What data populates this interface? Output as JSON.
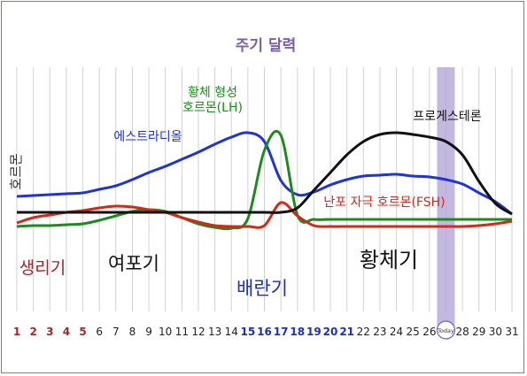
{
  "chart_data": {
    "type": "line",
    "title": "주기 달력",
    "ylabel": "호르몬",
    "x": [
      1,
      2,
      3,
      4,
      5,
      6,
      7,
      8,
      9,
      10,
      11,
      12,
      13,
      14,
      15,
      16,
      17,
      18,
      19,
      20,
      21,
      22,
      23,
      24,
      25,
      26,
      27,
      28,
      29,
      30,
      31
    ],
    "day_colors": {
      "menstrual": "#a8232a",
      "fertile": "#1a2fbf",
      "normal": "#222222"
    },
    "menstrual_days": [
      1,
      2,
      3,
      4,
      5
    ],
    "fertile_days": [
      15,
      16,
      17,
      18,
      19,
      20,
      21
    ],
    "today": {
      "day": 27,
      "label": "Today",
      "band_color": "#b9addb"
    },
    "phases": [
      {
        "label": "생리기",
        "color": "#a8232a"
      },
      {
        "label": "여포기",
        "color": "#111111"
      },
      {
        "label": "배란기",
        "color": "#1a2fbf"
      },
      {
        "label": "황체기",
        "color": "#111111"
      }
    ],
    "series": [
      {
        "name": "에스트라디올",
        "color": "#1f33d6",
        "values": [
          0.28,
          0.29,
          0.3,
          0.31,
          0.32,
          0.36,
          0.4,
          0.47,
          0.55,
          0.62,
          0.7,
          0.78,
          0.87,
          0.95,
          1.0,
          0.9,
          0.46,
          0.3,
          0.33,
          0.41,
          0.47,
          0.51,
          0.52,
          0.53,
          0.51,
          0.5,
          0.47,
          0.42,
          0.32,
          0.22,
          0.08
        ]
      },
      {
        "name": "황체 형성\n호르몬(LH)",
        "color": "#1d8a1d",
        "values": [
          -0.06,
          -0.05,
          -0.05,
          -0.04,
          -0.03,
          0.01,
          0.06,
          0.11,
          0.13,
          0.11,
          0.04,
          -0.03,
          -0.07,
          -0.08,
          0.03,
          0.8,
          0.97,
          0.07,
          0.02,
          0.02,
          0.02,
          0.02,
          0.02,
          0.02,
          0.02,
          0.02,
          0.02,
          0.02,
          0.02,
          0.02,
          0.02
        ]
      },
      {
        "name": "난포 자극 호르몬(FSH)",
        "color": "#d22a1a",
        "values": [
          -0.02,
          0.04,
          0.07,
          0.1,
          0.12,
          0.15,
          0.17,
          0.16,
          0.13,
          0.1,
          0.04,
          -0.01,
          -0.05,
          -0.06,
          -0.06,
          -0.05,
          0.21,
          0.06,
          -0.05,
          -0.06,
          -0.06,
          -0.06,
          -0.06,
          -0.06,
          -0.06,
          -0.06,
          -0.06,
          -0.06,
          -0.05,
          -0.03,
          0.0
        ]
      },
      {
        "name": "프로게스테론",
        "color": "#111111",
        "values": [
          0.1,
          0.1,
          0.1,
          0.1,
          0.1,
          0.1,
          0.1,
          0.1,
          0.1,
          0.1,
          0.1,
          0.1,
          0.1,
          0.1,
          0.1,
          0.1,
          0.1,
          0.15,
          0.35,
          0.55,
          0.75,
          0.9,
          0.98,
          1.0,
          0.98,
          0.95,
          0.9,
          0.75,
          0.45,
          0.2,
          0.08
        ]
      }
    ],
    "ylim": [
      -0.1,
      1.1
    ],
    "grid": "vertical"
  }
}
